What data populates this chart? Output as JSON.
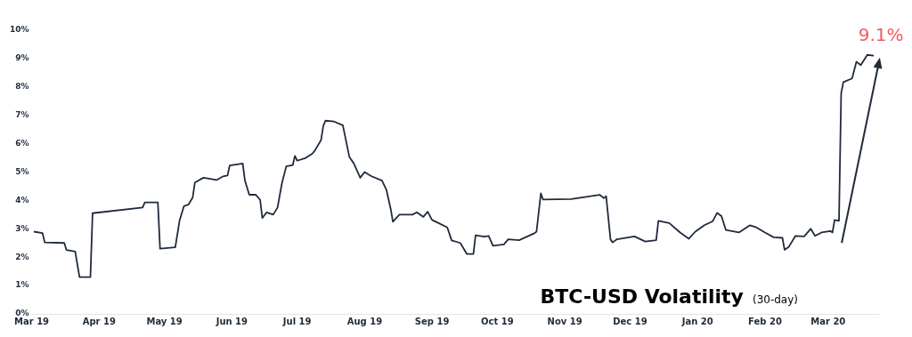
{
  "chart_data": {
    "type": "line",
    "title": "BTC-USD Volatility",
    "subtitle": "(30-day)",
    "annotations": [
      {
        "text": "9.1%",
        "x": "2020-03-22",
        "y": 9.1
      }
    ],
    "xlim": [
      "2019-03-01",
      "2020-03-24"
    ],
    "xticks": [
      {
        "value": "2019-03-01",
        "label": "Mar 19"
      },
      {
        "value": "2019-04-01",
        "label": "Apr 19"
      },
      {
        "value": "2019-05-01",
        "label": "May 19"
      },
      {
        "value": "2019-06-01",
        "label": "Jun 19"
      },
      {
        "value": "2019-07-01",
        "label": "Jul 19"
      },
      {
        "value": "2019-08-01",
        "label": "Aug 19"
      },
      {
        "value": "2019-09-01",
        "label": "Sep 19"
      },
      {
        "value": "2019-10-01",
        "label": "Oct 19"
      },
      {
        "value": "2019-11-01",
        "label": "Nov 19"
      },
      {
        "value": "2019-12-01",
        "label": "Dec 19"
      },
      {
        "value": "2020-01-01",
        "label": "Jan 20"
      },
      {
        "value": "2020-02-01",
        "label": "Feb 20"
      },
      {
        "value": "2020-03-01",
        "label": "Mar 20"
      }
    ],
    "ylim": [
      0,
      10
    ],
    "yticks": [
      {
        "value": 0,
        "label": "0%"
      },
      {
        "value": 1,
        "label": "1%"
      },
      {
        "value": 2,
        "label": "2%"
      },
      {
        "value": 3,
        "label": "3%"
      },
      {
        "value": 4,
        "label": "4%"
      },
      {
        "value": 5,
        "label": "5%"
      },
      {
        "value": 6,
        "label": "6%"
      },
      {
        "value": 7,
        "label": "7%"
      },
      {
        "value": 8,
        "label": "8%"
      },
      {
        "value": 9,
        "label": "9%"
      },
      {
        "value": 10,
        "label": "10%"
      }
    ],
    "grid": false,
    "legend": false,
    "marker": "none",
    "line_style": "solid",
    "series": [
      {
        "color": "#1f2a3c",
        "x": [
          "2019-03-02",
          "2019-03-06",
          "2019-03-07",
          "2019-03-16",
          "2019-03-17",
          "2019-03-21",
          "2019-03-23",
          "2019-03-28",
          "2019-03-29",
          "2019-04-21",
          "2019-04-22",
          "2019-04-28",
          "2019-04-29",
          "2019-05-06",
          "2019-05-08",
          "2019-05-10",
          "2019-05-12",
          "2019-05-14",
          "2019-05-15",
          "2019-05-19",
          "2019-05-25",
          "2019-05-28",
          "2019-05-30",
          "2019-05-31",
          "2019-06-06",
          "2019-06-07",
          "2019-06-09",
          "2019-06-12",
          "2019-06-14",
          "2019-06-15",
          "2019-06-17",
          "2019-06-20",
          "2019-06-22",
          "2019-06-24",
          "2019-06-26",
          "2019-06-29",
          "2019-06-30",
          "2019-07-01",
          "2019-07-05",
          "2019-07-08",
          "2019-07-09",
          "2019-07-12",
          "2019-07-13",
          "2019-07-14",
          "2019-07-18",
          "2019-07-22",
          "2019-07-25",
          "2019-07-27",
          "2019-07-30",
          "2019-08-01",
          "2019-08-04",
          "2019-08-09",
          "2019-08-11",
          "2019-08-13",
          "2019-08-14",
          "2019-08-17",
          "2019-08-23",
          "2019-08-25",
          "2019-08-28",
          "2019-08-30",
          "2019-09-01",
          "2019-09-04",
          "2019-09-08",
          "2019-09-10",
          "2019-09-14",
          "2019-09-17",
          "2019-09-20",
          "2019-09-21",
          "2019-09-25",
          "2019-09-27",
          "2019-09-29",
          "2019-10-04",
          "2019-10-06",
          "2019-10-11",
          "2019-10-18",
          "2019-10-19",
          "2019-10-21",
          "2019-10-22",
          "2019-11-04",
          "2019-11-17",
          "2019-11-19",
          "2019-11-20",
          "2019-11-22",
          "2019-11-23",
          "2019-11-25",
          "2019-12-03",
          "2019-12-08",
          "2019-12-13",
          "2019-12-14",
          "2019-12-19",
          "2019-12-24",
          "2019-12-28",
          "2019-12-31",
          "2020-01-04",
          "2020-01-08",
          "2020-01-10",
          "2020-01-12",
          "2020-01-14",
          "2020-01-20",
          "2020-01-25",
          "2020-01-28",
          "2020-02-01",
          "2020-02-05",
          "2020-02-09",
          "2020-02-10",
          "2020-02-12",
          "2020-02-15",
          "2020-02-19",
          "2020-02-22",
          "2020-02-24",
          "2020-02-27",
          "2020-03-02",
          "2020-03-03",
          "2020-03-04",
          "2020-03-06",
          "2020-03-07",
          "2020-03-08",
          "2020-03-12",
          "2020-03-14",
          "2020-03-16",
          "2020-03-19",
          "2020-03-22"
        ],
        "values": [
          2.9,
          2.85,
          2.52,
          2.5,
          2.25,
          2.2,
          1.3,
          1.3,
          3.55,
          3.75,
          3.93,
          3.93,
          2.3,
          2.35,
          3.3,
          3.8,
          3.85,
          4.1,
          4.63,
          4.8,
          4.72,
          4.85,
          4.88,
          5.23,
          5.3,
          4.7,
          4.2,
          4.2,
          4.02,
          3.38,
          3.58,
          3.5,
          3.75,
          4.6,
          5.2,
          5.25,
          5.57,
          5.4,
          5.5,
          5.65,
          5.74,
          6.13,
          6.62,
          6.81,
          6.78,
          6.65,
          5.53,
          5.31,
          4.8,
          5.0,
          4.86,
          4.7,
          4.38,
          3.7,
          3.25,
          3.5,
          3.5,
          3.58,
          3.42,
          3.6,
          3.31,
          3.2,
          3.05,
          2.59,
          2.5,
          2.11,
          2.11,
          2.77,
          2.72,
          2.75,
          2.4,
          2.45,
          2.63,
          2.6,
          2.84,
          2.9,
          4.25,
          4.03,
          4.05,
          4.2,
          4.08,
          4.15,
          2.62,
          2.52,
          2.63,
          2.73,
          2.55,
          2.6,
          3.28,
          3.2,
          2.87,
          2.65,
          2.9,
          3.12,
          3.27,
          3.56,
          3.45,
          2.96,
          2.87,
          3.12,
          3.05,
          2.87,
          2.7,
          2.68,
          2.26,
          2.37,
          2.75,
          2.73,
          3.0,
          2.75,
          2.87,
          2.92,
          2.87,
          3.31,
          3.28,
          7.78,
          8.17,
          8.3,
          8.89,
          8.77,
          9.13,
          9.1
        ]
      }
    ]
  }
}
